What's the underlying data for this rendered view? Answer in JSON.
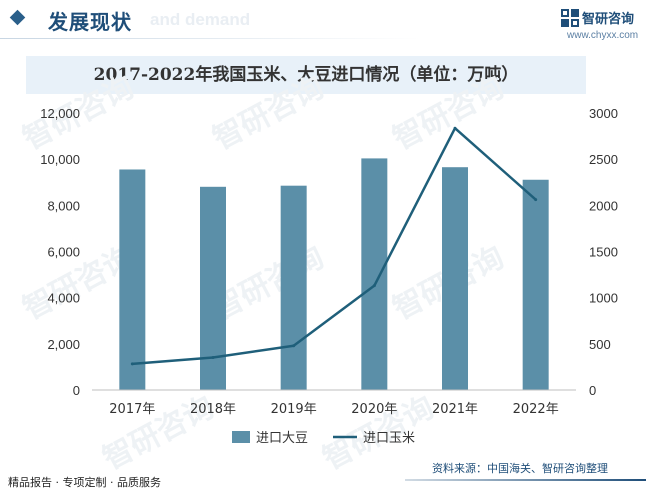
{
  "header": {
    "title": "发展现状",
    "ghost_text": "and demand"
  },
  "brand": {
    "name": "智研咨询",
    "url": "www.chyxx.com"
  },
  "watermark": {
    "text": "智研咨询"
  },
  "chart_data": {
    "type": "bar+line",
    "title": "2017-2022年我国玉米、大豆进口情况（单位：万吨）",
    "categories": [
      "2017年",
      "2018年",
      "2019年",
      "2020年",
      "2021年",
      "2022年"
    ],
    "series": [
      {
        "name": "进口大豆",
        "type": "bar",
        "axis": "left",
        "color": "#5b8fa8",
        "values": [
          9553,
          8803,
          8851,
          10033,
          9652,
          9108
        ]
      },
      {
        "name": "进口玉米",
        "type": "line",
        "axis": "right",
        "color": "#1f5f7a",
        "values": [
          283,
          352,
          479,
          1130,
          2835,
          2062
        ]
      }
    ],
    "y_left": {
      "min": 0,
      "max": 12000,
      "ticks": [
        "0",
        "2,000",
        "4,000",
        "6,000",
        "8,000",
        "10,000",
        "12,000"
      ]
    },
    "y_right": {
      "min": 0,
      "max": 3000,
      "ticks": [
        "0",
        "500",
        "1000",
        "1500",
        "2000",
        "2500",
        "3000"
      ]
    },
    "legend_position": "bottom",
    "grid": false
  },
  "footer": {
    "left": "精品报告 · 专项定制 · 品质服务",
    "source": "资料来源：中国海关、智研咨询整理"
  }
}
